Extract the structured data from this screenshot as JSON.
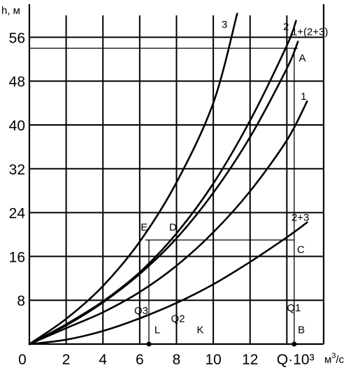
{
  "chart_data": {
    "type": "line",
    "title": "",
    "ylabel": "h, м",
    "xlabel_unit_prefix": "м",
    "xlabel_unit_sup": "3",
    "xlabel_unit_suffix": "/с",
    "xlim": [
      0,
      16
    ],
    "ylim": [
      0,
      60
    ],
    "x_ticks": [
      "0",
      "2",
      "4",
      "6",
      "8",
      "10",
      "12",
      "Q·10³"
    ],
    "x_tick_values": [
      0,
      2,
      4,
      6,
      8,
      10,
      12,
      14.4
    ],
    "y_ticks": [
      "8",
      "16",
      "24",
      "32",
      "40",
      "48",
      "56"
    ],
    "y_tick_values": [
      8,
      16,
      24,
      32,
      40,
      48,
      56
    ],
    "grid": true,
    "series": [
      {
        "name": "3",
        "x": [
          0,
          2,
          4,
          6,
          8,
          10,
          11.3
        ],
        "y": [
          0,
          4.6,
          10.6,
          18.7,
          29.5,
          44,
          60.3
        ]
      },
      {
        "name": "2",
        "x": [
          0,
          2,
          4,
          6,
          8,
          10,
          12,
          14,
          14.5
        ],
        "y": [
          0,
          3.6,
          7.8,
          13.1,
          20.2,
          29.3,
          40.8,
          54.5,
          59
        ]
      },
      {
        "name": "1+(2+3)",
        "x": [
          0,
          2,
          4,
          6,
          8,
          10,
          12,
          14,
          14.6
        ],
        "y": [
          0,
          3.4,
          7.6,
          12.8,
          19.3,
          27.6,
          37.8,
          50.3,
          55.2
        ]
      },
      {
        "name": "1",
        "x": [
          0,
          2,
          4,
          6,
          8,
          10,
          12,
          14,
          15.1
        ],
        "y": [
          0,
          2.9,
          5.8,
          9.5,
          14.3,
          20.4,
          27.9,
          37.2,
          44.3
        ]
      },
      {
        "name": "2+3",
        "x": [
          0,
          2,
          4,
          6,
          8,
          10,
          12,
          14,
          15.1
        ],
        "y": [
          0,
          0.8,
          2.4,
          4.7,
          7.5,
          10.9,
          15,
          19.5,
          22.2
        ]
      }
    ],
    "reference_lines": {
      "h_A": 54,
      "h_CE": 19,
      "Q_L": 6.5,
      "Q_B": 14.4,
      "Q_left_B": 14
    },
    "point_labels": [
      "3",
      "2",
      "1+(2+3)",
      "A",
      "1",
      "2+3",
      "C",
      "E",
      "D",
      "Q3",
      "L",
      "Q2",
      "K",
      "Q1",
      "B"
    ]
  }
}
